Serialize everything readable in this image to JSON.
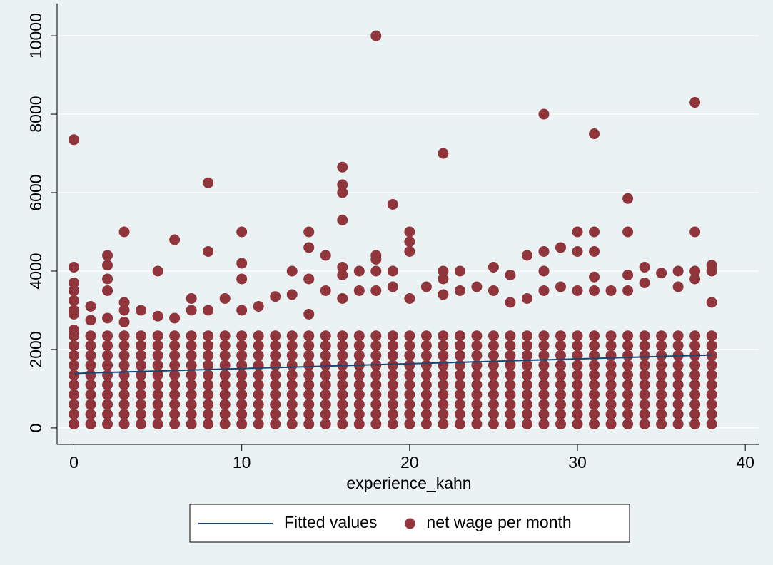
{
  "chart_data": {
    "type": "scatter",
    "xlabel": "experience_kahn",
    "xlim": [
      -1,
      40.8
    ],
    "ylim": [
      -420,
      10820
    ],
    "xticks": [
      0,
      10,
      20,
      30,
      40
    ],
    "yticks": [
      0,
      2000,
      4000,
      6000,
      8000,
      10000
    ],
    "grid": true,
    "legend": "bottom",
    "series": [
      {
        "name": "Fitted values",
        "type": "line",
        "color": "#1a476f",
        "x": [
          0,
          38
        ],
        "values": [
          1390,
          1860
        ]
      },
      {
        "name": "net wage per month",
        "type": "scatter",
        "color": "#90353b",
        "x": [
          0,
          0,
          0,
          0,
          0,
          0,
          0,
          0,
          0,
          0,
          0,
          0,
          0,
          0,
          0,
          0,
          0,
          0,
          1,
          1,
          1,
          1,
          1,
          1,
          1,
          1,
          1,
          1,
          1,
          1,
          2,
          2,
          2,
          2,
          2,
          2,
          2,
          2,
          2,
          2,
          2,
          2,
          2,
          2,
          2,
          3,
          3,
          3,
          3,
          3,
          3,
          3,
          3,
          3,
          3,
          3,
          3,
          3,
          3,
          4,
          4,
          4,
          4,
          4,
          4,
          4,
          4,
          4,
          4,
          4,
          5,
          5,
          5,
          5,
          5,
          5,
          5,
          5,
          5,
          5,
          5,
          5,
          6,
          6,
          6,
          6,
          6,
          6,
          6,
          6,
          6,
          6,
          6,
          6,
          7,
          7,
          7,
          7,
          7,
          7,
          7,
          7,
          7,
          7,
          7,
          7,
          8,
          8,
          8,
          8,
          8,
          8,
          8,
          8,
          8,
          8,
          8,
          8,
          8,
          9,
          9,
          9,
          9,
          9,
          9,
          9,
          9,
          9,
          9,
          9,
          10,
          10,
          10,
          10,
          10,
          10,
          10,
          10,
          10,
          10,
          10,
          10,
          10,
          10,
          11,
          11,
          11,
          11,
          11,
          11,
          11,
          11,
          11,
          11,
          11,
          12,
          12,
          12,
          12,
          12,
          12,
          12,
          12,
          12,
          12,
          12,
          13,
          13,
          13,
          13,
          13,
          13,
          13,
          13,
          13,
          13,
          13,
          13,
          14,
          14,
          14,
          14,
          14,
          14,
          14,
          14,
          14,
          14,
          14,
          14,
          14,
          14,
          15,
          15,
          15,
          15,
          15,
          15,
          15,
          15,
          15,
          15,
          15,
          15,
          16,
          16,
          16,
          16,
          16,
          16,
          16,
          16,
          16,
          16,
          16,
          16,
          16,
          16,
          16,
          16,
          16,
          17,
          17,
          17,
          17,
          17,
          17,
          17,
          17,
          17,
          17,
          17,
          17,
          18,
          18,
          18,
          18,
          18,
          18,
          18,
          18,
          18,
          18,
          18,
          18,
          18,
          18,
          18,
          19,
          19,
          19,
          19,
          19,
          19,
          19,
          19,
          19,
          19,
          19,
          19,
          19,
          20,
          20,
          20,
          20,
          20,
          20,
          20,
          20,
          20,
          20,
          20,
          20,
          20,
          20,
          21,
          21,
          21,
          21,
          21,
          21,
          21,
          21,
          21,
          21,
          21,
          22,
          22,
          22,
          22,
          22,
          22,
          22,
          22,
          22,
          22,
          22,
          22,
          22,
          22,
          23,
          23,
          23,
          23,
          23,
          23,
          23,
          23,
          23,
          23,
          23,
          23,
          24,
          24,
          24,
          24,
          24,
          24,
          24,
          24,
          24,
          24,
          24,
          25,
          25,
          25,
          25,
          25,
          25,
          25,
          25,
          25,
          25,
          25,
          25,
          26,
          26,
          26,
          26,
          26,
          26,
          26,
          26,
          26,
          26,
          26,
          26,
          27,
          27,
          27,
          27,
          27,
          27,
          27,
          27,
          27,
          27,
          27,
          27,
          28,
          28,
          28,
          28,
          28,
          28,
          28,
          28,
          28,
          28,
          28,
          28,
          28,
          28,
          29,
          29,
          29,
          29,
          29,
          29,
          29,
          29,
          29,
          29,
          29,
          29,
          30,
          30,
          30,
          30,
          30,
          30,
          30,
          30,
          30,
          30,
          30,
          30,
          30,
          31,
          31,
          31,
          31,
          31,
          31,
          31,
          31,
          31,
          31,
          31,
          31,
          31,
          31,
          31,
          32,
          32,
          32,
          32,
          32,
          32,
          32,
          32,
          32,
          32,
          32,
          33,
          33,
          33,
          33,
          33,
          33,
          33,
          33,
          33,
          33,
          33,
          33,
          33,
          33,
          34,
          34,
          34,
          34,
          34,
          34,
          34,
          34,
          34,
          34,
          34,
          34,
          35,
          35,
          35,
          35,
          35,
          35,
          35,
          35,
          35,
          35,
          35,
          36,
          36,
          36,
          36,
          36,
          36,
          36,
          36,
          36,
          36,
          36,
          36,
          37,
          37,
          37,
          37,
          37,
          37,
          37,
          37,
          37,
          37,
          37,
          37,
          37,
          37,
          38,
          38,
          38,
          38,
          38,
          38,
          38,
          38,
          38,
          38,
          38,
          38,
          38
        ],
        "values": [
          100,
          350,
          600,
          850,
          1100,
          1350,
          1600,
          1850,
          2100,
          2350,
          2500,
          2900,
          3000,
          3250,
          3500,
          3700,
          4100,
          7350,
          100,
          350,
          600,
          850,
          1100,
          1350,
          1600,
          1850,
          2100,
          2350,
          2750,
          3100,
          100,
          350,
          600,
          850,
          1100,
          1350,
          1600,
          1850,
          2100,
          2350,
          2800,
          3500,
          3800,
          4150,
          4400,
          100,
          350,
          600,
          850,
          1100,
          1350,
          1600,
          1850,
          2100,
          2350,
          2700,
          3000,
          3200,
          5000,
          100,
          350,
          600,
          850,
          1100,
          1350,
          1600,
          1850,
          2100,
          2350,
          3000,
          100,
          350,
          600,
          850,
          1100,
          1350,
          1600,
          1850,
          2100,
          2350,
          2850,
          4000,
          100,
          350,
          600,
          850,
          1100,
          1350,
          1600,
          1850,
          2100,
          2350,
          2800,
          4800,
          100,
          350,
          600,
          850,
          1100,
          1350,
          1600,
          1850,
          2100,
          2350,
          3000,
          3300,
          100,
          350,
          600,
          850,
          1100,
          1350,
          1600,
          1850,
          2100,
          2350,
          3000,
          4500,
          6250,
          100,
          350,
          600,
          850,
          1100,
          1350,
          1600,
          1850,
          2100,
          2350,
          3300,
          100,
          350,
          600,
          850,
          1100,
          1350,
          1600,
          1850,
          2100,
          2350,
          3000,
          3800,
          4200,
          5000,
          100,
          350,
          600,
          850,
          1100,
          1350,
          1600,
          1850,
          2100,
          2350,
          3100,
          100,
          350,
          600,
          850,
          1100,
          1350,
          1600,
          1850,
          2100,
          2350,
          3350,
          100,
          350,
          600,
          850,
          1100,
          1350,
          1600,
          1850,
          2100,
          2350,
          3400,
          4000,
          100,
          350,
          600,
          850,
          1100,
          1350,
          1600,
          1850,
          2100,
          2350,
          2900,
          3800,
          4600,
          5000,
          100,
          350,
          600,
          850,
          1100,
          1350,
          1600,
          1850,
          2100,
          2350,
          3500,
          4400,
          100,
          350,
          600,
          850,
          1100,
          1350,
          1600,
          1850,
          2100,
          2350,
          3300,
          3900,
          4100,
          5300,
          6000,
          6200,
          6650,
          100,
          350,
          600,
          850,
          1100,
          1350,
          1600,
          1850,
          2100,
          2350,
          3500,
          4000,
          100,
          350,
          600,
          850,
          1100,
          1350,
          1600,
          1850,
          2100,
          2350,
          3500,
          4000,
          4300,
          4400,
          10000,
          100,
          350,
          600,
          850,
          1100,
          1350,
          1600,
          1850,
          2100,
          2350,
          3600,
          4000,
          5700,
          100,
          350,
          600,
          850,
          1100,
          1350,
          1600,
          1850,
          2100,
          2350,
          3300,
          4500,
          4750,
          5000,
          100,
          350,
          600,
          850,
          1100,
          1350,
          1600,
          1850,
          2100,
          2350,
          3600,
          100,
          350,
          600,
          850,
          1100,
          1350,
          1600,
          1850,
          2100,
          2350,
          3400,
          3800,
          4000,
          7000,
          100,
          350,
          600,
          850,
          1100,
          1350,
          1600,
          1850,
          2100,
          2350,
          3500,
          4000,
          100,
          350,
          600,
          850,
          1100,
          1350,
          1600,
          1850,
          2100,
          2350,
          3600,
          100,
          350,
          600,
          850,
          1100,
          1350,
          1600,
          1850,
          2100,
          2350,
          3500,
          4100,
          100,
          350,
          600,
          850,
          1100,
          1350,
          1600,
          1850,
          2100,
          2350,
          3200,
          3900,
          100,
          350,
          600,
          850,
          1100,
          1350,
          1600,
          1850,
          2100,
          2350,
          3300,
          4400,
          100,
          350,
          600,
          850,
          1100,
          1350,
          1600,
          1850,
          2100,
          2350,
          3500,
          4000,
          4500,
          8000,
          100,
          350,
          600,
          850,
          1100,
          1350,
          1600,
          1850,
          2100,
          2350,
          3600,
          4600,
          100,
          350,
          600,
          850,
          1100,
          1350,
          1600,
          1850,
          2100,
          2350,
          3500,
          4500,
          5000,
          100,
          350,
          600,
          850,
          1100,
          1350,
          1600,
          1850,
          2100,
          2350,
          3500,
          3850,
          4500,
          5000,
          7500,
          100,
          350,
          600,
          850,
          1100,
          1350,
          1600,
          1850,
          2100,
          2350,
          3500,
          100,
          350,
          600,
          850,
          1100,
          1350,
          1600,
          1850,
          2100,
          2350,
          3500,
          3900,
          5000,
          5850,
          100,
          350,
          600,
          850,
          1100,
          1350,
          1600,
          1850,
          2100,
          2350,
          3700,
          4100,
          100,
          350,
          600,
          850,
          1100,
          1350,
          1600,
          1850,
          2100,
          2350,
          3950,
          100,
          350,
          600,
          850,
          1100,
          1350,
          1600,
          1850,
          2100,
          2350,
          3600,
          4000,
          100,
          350,
          600,
          850,
          1100,
          1350,
          1600,
          1850,
          2100,
          2350,
          3800,
          4000,
          5000,
          8300,
          100,
          350,
          600,
          850,
          1100,
          1350,
          1600,
          1850,
          2100,
          2350,
          3200,
          4000,
          4150
        ]
      }
    ]
  }
}
